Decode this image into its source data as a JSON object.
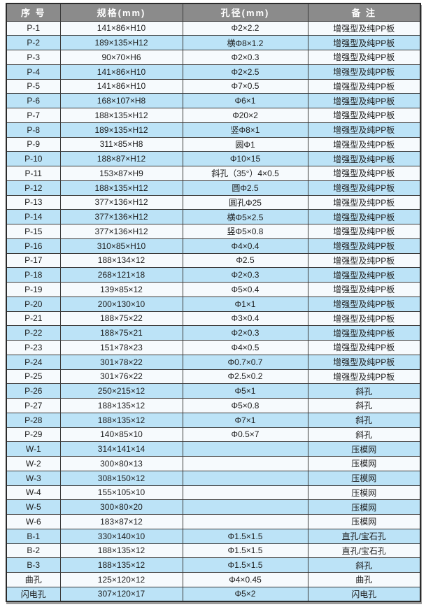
{
  "table": {
    "headers": [
      "序 号",
      "规格(mm)",
      "孔径(mm)",
      "备  注"
    ],
    "rows": [
      {
        "id": "P-1",
        "spec": "141×86×H10",
        "hole": "Φ2×2.2",
        "note": "增强型及纯PP板"
      },
      {
        "id": "P-2",
        "spec": "189×135×H12",
        "hole": "横Φ8×1.2",
        "note": "增强型及纯PP板"
      },
      {
        "id": "P-3",
        "spec": "90×70×H6",
        "hole": "Φ2×0.3",
        "note": "增强型及纯PP板"
      },
      {
        "id": "P-4",
        "spec": "141×86×H10",
        "hole": "Φ2×2.5",
        "note": "增强型及纯PP板"
      },
      {
        "id": "P-5",
        "spec": "141×86×H10",
        "hole": "Φ7×0.5",
        "note": "增强型及纯PP板"
      },
      {
        "id": "P-6",
        "spec": "168×107×H8",
        "hole": "Φ6×1",
        "note": "增强型及纯PP板"
      },
      {
        "id": "P-7",
        "spec": "188×135×H12",
        "hole": "Φ20×2",
        "note": "增强型及纯PP板"
      },
      {
        "id": "P-8",
        "spec": "189×135×H12",
        "hole": "竖Φ8×1",
        "note": "增强型及纯PP板"
      },
      {
        "id": "P-9",
        "spec": "311×85×H8",
        "hole": "圆Φ1",
        "note": "增强型及纯PP板"
      },
      {
        "id": "P-10",
        "spec": "188×87×H12",
        "hole": "Φ10×15",
        "note": "增强型及纯PP板"
      },
      {
        "id": "P-11",
        "spec": "153×87×H9",
        "hole": "斜孔（35°）4×0.5",
        "note": "增强型及纯PP板"
      },
      {
        "id": "P-12",
        "spec": "188×135×H12",
        "hole": "圆Φ2.5",
        "note": "增强型及纯PP板"
      },
      {
        "id": "P-13",
        "spec": "377×136×H12",
        "hole": "圆孔Φ25",
        "note": "增强型及纯PP板"
      },
      {
        "id": "P-14",
        "spec": "377×136×H12",
        "hole": "横Φ5×2.5",
        "note": "增强型及纯PP板"
      },
      {
        "id": "P-15",
        "spec": "377×136×H12",
        "hole": "竖Φ5×0.8",
        "note": "增强型及纯PP板"
      },
      {
        "id": "P-16",
        "spec": "310×85×H10",
        "hole": "Φ4×0.4",
        "note": "增强型及纯PP板"
      },
      {
        "id": "P-17",
        "spec": "188×134×12",
        "hole": "Φ2.5",
        "note": "增强型及纯PP板"
      },
      {
        "id": "P-18",
        "spec": "268×121×18",
        "hole": "Φ2×0.3",
        "note": "增强型及纯PP板"
      },
      {
        "id": "P-19",
        "spec": "139×85×12",
        "hole": "Φ5×0.4",
        "note": "增强型及纯PP板"
      },
      {
        "id": "P-20",
        "spec": "200×130×10",
        "hole": "Φ1×1",
        "note": "增强型及纯PP板"
      },
      {
        "id": "P-21",
        "spec": "188×75×22",
        "hole": "Φ3×0.4",
        "note": "增强型及纯PP板"
      },
      {
        "id": "P-22",
        "spec": "188×75×21",
        "hole": "Φ2×0.3",
        "note": "增强型及纯PP板"
      },
      {
        "id": "P-23",
        "spec": "151×78×23",
        "hole": "Φ4×0.5",
        "note": "增强型及纯PP板"
      },
      {
        "id": "P-24",
        "spec": "301×78×22",
        "hole": "Φ0.7×0.7",
        "note": "增强型及纯PP板"
      },
      {
        "id": "P-25",
        "spec": "301×76×22",
        "hole": "Φ2.5×0.2",
        "note": "增强型及纯PP板"
      },
      {
        "id": "P-26",
        "spec": "250×215×12",
        "hole": "Φ5×1",
        "note": "斜孔"
      },
      {
        "id": "P-27",
        "spec": "188×135×12",
        "hole": "Φ5×0.8",
        "note": "斜孔"
      },
      {
        "id": "P-28",
        "spec": "188×135×12",
        "hole": "Φ7×1",
        "note": "斜孔"
      },
      {
        "id": "P-29",
        "spec": "140×85×10",
        "hole": "Φ0.5×7",
        "note": "斜孔"
      },
      {
        "id": "W-1",
        "spec": "314×141×14",
        "hole": "",
        "note": "压模网"
      },
      {
        "id": "W-2",
        "spec": "300×80×13",
        "hole": "",
        "note": "压模网"
      },
      {
        "id": "W-3",
        "spec": "308×150×12",
        "hole": "",
        "note": "压模网"
      },
      {
        "id": "W-4",
        "spec": "155×105×10",
        "hole": "",
        "note": "压模网"
      },
      {
        "id": "W-5",
        "spec": "300×80×20",
        "hole": "",
        "note": "压模网"
      },
      {
        "id": "W-6",
        "spec": "183×87×12",
        "hole": "",
        "note": "压模网"
      },
      {
        "id": "B-1",
        "spec": "330×140×10",
        "hole": "Φ1.5×1.5",
        "note": "直孔/宝石孔"
      },
      {
        "id": "B-2",
        "spec": "188×135×12",
        "hole": "Φ1.5×1.5",
        "note": "直孔/宝石孔"
      },
      {
        "id": "B-3",
        "spec": "188×135×12",
        "hole": "Φ1.5×1.5",
        "note": "斜孔"
      },
      {
        "id": "曲孔",
        "spec": "125×120×12",
        "hole": "Φ4×0.45",
        "note": "曲孔"
      },
      {
        "id": "闪电孔",
        "spec": "307×120×17",
        "hole": "Φ5×2",
        "note": "闪电孔"
      }
    ]
  },
  "colors": {
    "header_bg": "#8b8b8b",
    "header_text": "#ffffff",
    "row_light": "#f6fafd",
    "row_blue": "#bce3f7",
    "border": "#3a3a3a",
    "text": "#1c1c1c"
  }
}
